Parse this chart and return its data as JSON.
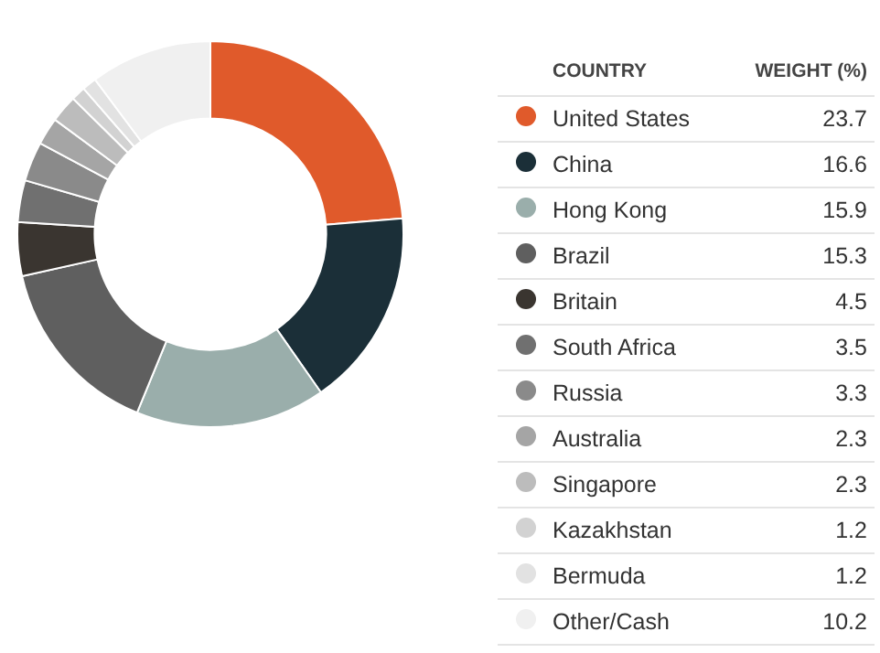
{
  "chart_data": {
    "type": "donut",
    "legend_title": "COUNTRY",
    "annotations": [
      "WEIGHT (%)"
    ],
    "legend": "right",
    "data_labels": true,
    "categories": [
      "United States",
      "China",
      "Hong Kong",
      "Brazil",
      "Britain",
      "South Africa",
      "Russia",
      "Australia",
      "Singapore",
      "Kazakhstan",
      "Bermuda",
      "Other/Cash"
    ],
    "values": [
      23.7,
      16.6,
      15.9,
      15.3,
      4.5,
      3.5,
      3.3,
      2.3,
      2.3,
      1.2,
      1.2,
      10.2
    ],
    "colors": [
      "#e05a2b",
      "#1b2f38",
      "#9aaeab",
      "#5f5f5f",
      "#3a3530",
      "#707070",
      "#8a8a8a",
      "#a5a5a5",
      "#bcbcbc",
      "#d2d2d2",
      "#e2e2e2",
      "#f0f0f0"
    ]
  }
}
